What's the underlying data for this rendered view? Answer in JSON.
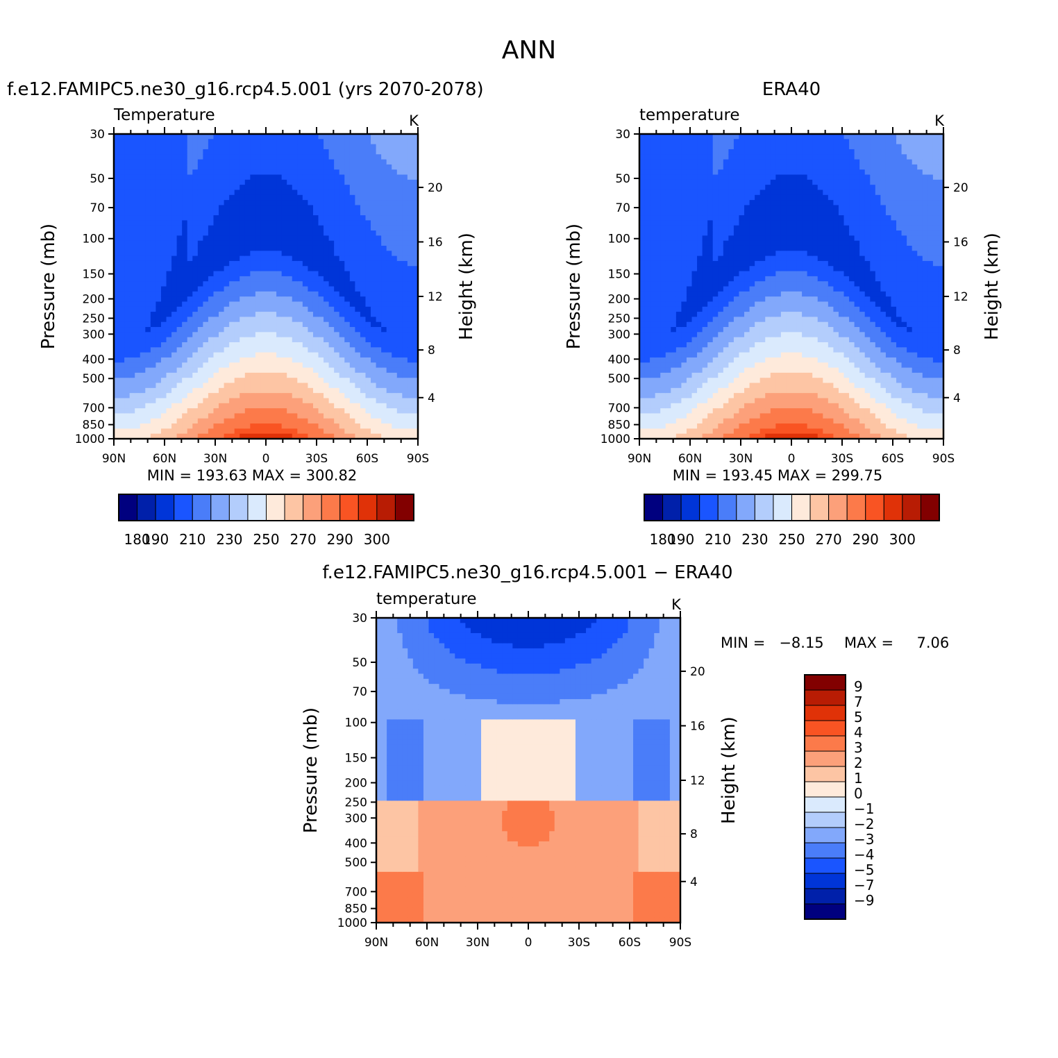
{
  "figure_title": "ANN",
  "chart_data": [
    {
      "type": "heatmap",
      "panel": "model",
      "title": "f.e12.FAMIPC5.ne30_g16.rcp4.5.001 (yrs 2070-2078)",
      "subtitle": "Temperature",
      "units": "K",
      "ylabel": "Pressure (mb)",
      "ylabel_right": "Height (km)",
      "x_ticks": [
        "90N",
        "60N",
        "30N",
        "0",
        "30S",
        "60S",
        "90S"
      ],
      "y_ticks": [
        "30",
        "50",
        "70",
        "100",
        "150",
        "200",
        "250",
        "300",
        "400",
        "500",
        "700",
        "850",
        "1000"
      ],
      "y_right_ticks": [
        "20",
        "16",
        "12",
        "8",
        "4"
      ],
      "stats": "MIN = 193.63   MAX = 300.82",
      "min": 193.63,
      "max": 300.82,
      "colorbar_labels": [
        "180",
        "190",
        "210",
        "230",
        "250",
        "270",
        "290",
        "300"
      ]
    },
    {
      "type": "heatmap",
      "panel": "obs",
      "title": "ERA40",
      "subtitle": "temperature",
      "units": "K",
      "ylabel": "Pressure (mb)",
      "ylabel_right": "Height (km)",
      "x_ticks": [
        "90N",
        "60N",
        "30N",
        "0",
        "30S",
        "60S",
        "90S"
      ],
      "y_ticks": [
        "30",
        "50",
        "70",
        "100",
        "150",
        "200",
        "250",
        "300",
        "400",
        "500",
        "700",
        "850",
        "1000"
      ],
      "y_right_ticks": [
        "20",
        "16",
        "12",
        "8",
        "4"
      ],
      "stats": "MIN = 193.45   MAX = 299.75",
      "min": 193.45,
      "max": 299.75,
      "colorbar_labels": [
        "180",
        "190",
        "210",
        "230",
        "250",
        "270",
        "290",
        "300"
      ]
    },
    {
      "type": "heatmap",
      "panel": "diff",
      "title": "f.e12.FAMIPC5.ne30_g16.rcp4.5.001 − ERA40",
      "subtitle": "temperature",
      "units": "K",
      "ylabel": "Pressure (mb)",
      "ylabel_right": "Height (km)",
      "x_ticks": [
        "90N",
        "60N",
        "30N",
        "0",
        "30S",
        "60S",
        "90S"
      ],
      "y_ticks": [
        "30",
        "50",
        "70",
        "100",
        "150",
        "200",
        "250",
        "300",
        "400",
        "500",
        "700",
        "850",
        "1000"
      ],
      "y_right_ticks": [
        "20",
        "16",
        "12",
        "8",
        "4"
      ],
      "stats_min": "MIN =   −8.15",
      "stats_max": "MAX =     7.06",
      "min": -8.15,
      "max": 7.06,
      "colorbar_labels": [
        "9",
        "7",
        "5",
        "4",
        "3",
        "2",
        "1",
        "0",
        "−1",
        "−2",
        "−3",
        "−4",
        "−5",
        "−7",
        "−9"
      ]
    }
  ],
  "colors": {
    "abs_scale": [
      "#00007f",
      "#0020aa",
      "#0035d8",
      "#1a55ff",
      "#4a7df9",
      "#82a8fb",
      "#b3cdfc",
      "#daeafd",
      "#feeadb",
      "#fdc5a4",
      "#fca07a",
      "#fc7a4a",
      "#f95423",
      "#e03208",
      "#b81c04",
      "#820000"
    ],
    "diff_scale": [
      "#820000",
      "#b81c04",
      "#e03208",
      "#f95423",
      "#fc7a4a",
      "#fca07a",
      "#fdc5a4",
      "#feeadb",
      "#daeafd",
      "#b3cdfc",
      "#82a8fb",
      "#4a7df9",
      "#1a55ff",
      "#0035d8",
      "#0020aa",
      "#00007f"
    ]
  }
}
